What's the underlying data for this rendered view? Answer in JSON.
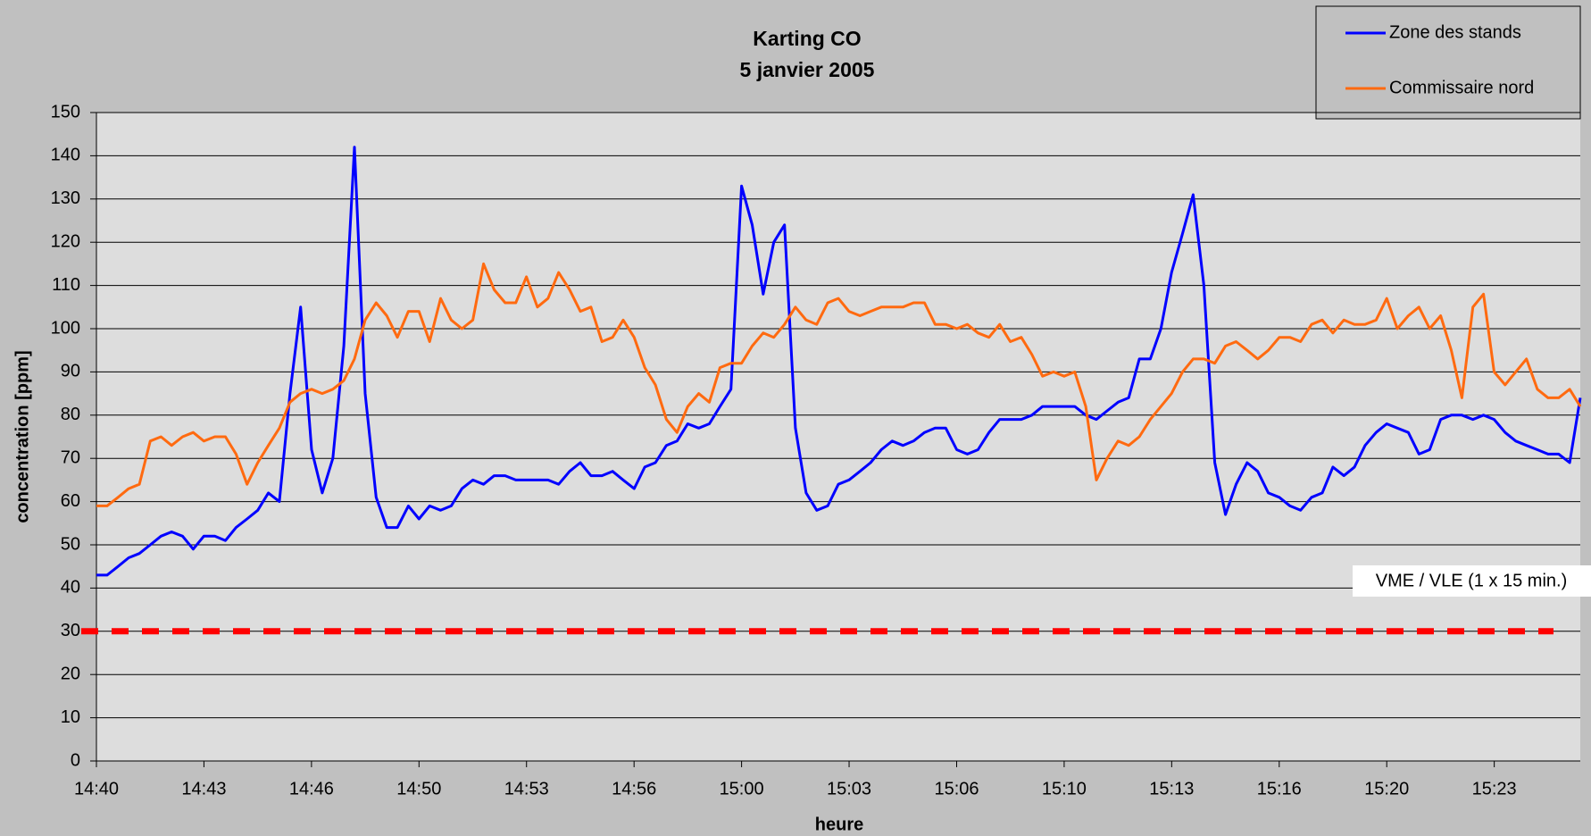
{
  "chart_data": {
    "type": "line",
    "title": "Karting  CO",
    "subtitle": "5 janvier 2005",
    "x_label": "heure",
    "y_label": "concentration [ppm]",
    "x": [
      0,
      0.33,
      0.67,
      1,
      1.33,
      1.67,
      2,
      2.33,
      2.67,
      3,
      3.33,
      3.67,
      4,
      4.33,
      4.67,
      5,
      5.33,
      5.67,
      6,
      6.33,
      6.67,
      7,
      7.33,
      7.67,
      8,
      8.33,
      8.67,
      9,
      9.33,
      9.67,
      10,
      10.33,
      10.67,
      11,
      11.33,
      11.67,
      12,
      12.33,
      12.67,
      13,
      13.33,
      13.67,
      14,
      14.33,
      14.67,
      15,
      15.33,
      15.67,
      16,
      16.33,
      16.67,
      17,
      17.33,
      17.67,
      18,
      18.33,
      18.67,
      19,
      19.33,
      19.67,
      20,
      20.33,
      20.67,
      21,
      21.33,
      21.67,
      22,
      22.33,
      22.67,
      23,
      23.33,
      23.67,
      24,
      24.33,
      24.67,
      25,
      25.33,
      25.67,
      26,
      26.33,
      26.67,
      27,
      27.33,
      27.67,
      28,
      28.33,
      28.67,
      29,
      29.33,
      29.67,
      30,
      30.33,
      30.67,
      31,
      31.33,
      31.67,
      32,
      32.33,
      32.67,
      33,
      33.33,
      33.67,
      34,
      34.33,
      34.67,
      35,
      35.33,
      35.67,
      36,
      36.33,
      36.67,
      37,
      37.33,
      37.67,
      38,
      38.33,
      38.67,
      39,
      39.33,
      39.67,
      40,
      40.33,
      40.67,
      41,
      41.33,
      41.67,
      42,
      42.33,
      42.67,
      43,
      43.33,
      43.67,
      44,
      44.33,
      44.67,
      45,
      45.33,
      45.67,
      46
    ],
    "series": [
      {
        "name": "Zone des stands",
        "color": "#0000ff",
        "values": [
          43,
          43,
          45,
          47,
          48,
          50,
          52,
          53,
          52,
          49,
          52,
          52,
          51,
          54,
          56,
          58,
          62,
          60,
          85,
          105,
          72,
          62,
          70,
          96,
          142,
          85,
          61,
          54,
          54,
          59,
          56,
          59,
          58,
          59,
          63,
          65,
          64,
          66,
          66,
          65,
          65,
          65,
          65,
          64,
          67,
          69,
          66,
          66,
          67,
          65,
          63,
          68,
          69,
          73,
          74,
          78,
          77,
          78,
          82,
          86,
          133,
          124,
          108,
          120,
          124,
          77,
          62,
          58,
          59,
          64,
          65,
          67,
          69,
          72,
          74,
          73,
          74,
          76,
          77,
          77,
          72,
          71,
          72,
          76,
          79,
          79,
          79,
          80,
          82,
          82,
          82,
          82,
          80,
          79,
          81,
          83,
          84,
          93,
          93,
          100,
          113,
          122,
          131,
          110,
          69,
          57,
          64,
          69,
          67,
          62,
          61,
          59,
          58,
          61,
          62,
          68,
          66,
          68,
          73,
          76,
          78,
          77,
          76,
          71,
          72,
          79,
          80,
          80,
          79,
          80,
          79,
          76,
          74,
          73,
          72,
          71,
          71,
          69,
          84
        ]
      },
      {
        "name": "Commissaire nord",
        "color": "#ff6a10",
        "values": [
          59,
          59,
          61,
          63,
          64,
          74,
          75,
          73,
          75,
          76,
          74,
          75,
          75,
          71,
          64,
          69,
          73,
          77,
          83,
          85,
          86,
          85,
          86,
          88,
          93,
          102,
          106,
          103,
          98,
          104,
          104,
          97,
          107,
          102,
          100,
          102,
          115,
          109,
          106,
          106,
          112,
          105,
          107,
          113,
          109,
          104,
          105,
          97,
          98,
          102,
          98,
          91,
          87,
          79,
          76,
          82,
          85,
          83,
          91,
          92,
          92,
          96,
          99,
          98,
          101,
          105,
          102,
          101,
          106,
          107,
          104,
          103,
          104,
          105,
          105,
          105,
          106,
          106,
          101,
          101,
          100,
          101,
          99,
          98,
          101,
          97,
          98,
          94,
          89,
          90,
          89,
          90,
          82,
          65,
          70,
          74,
          73,
          75,
          79,
          82,
          85,
          90,
          93,
          93,
          92,
          96,
          97,
          95,
          93,
          95,
          98,
          98,
          97,
          101,
          102,
          99,
          102,
          101,
          101,
          102,
          107,
          100,
          103,
          105,
          100,
          103,
          95,
          84,
          105,
          108,
          90,
          87,
          90,
          93,
          86,
          84,
          84,
          86,
          82
        ]
      }
    ],
    "xlim": [
      0,
      46
    ],
    "xticks": [
      {
        "value": 0,
        "label": "14:40"
      },
      {
        "value": 3.333,
        "label": "14:43"
      },
      {
        "value": 6.667,
        "label": "14:46"
      },
      {
        "value": 10,
        "label": "14:50"
      },
      {
        "value": 13.333,
        "label": "14:53"
      },
      {
        "value": 16.667,
        "label": "14:56"
      },
      {
        "value": 20,
        "label": "15:00"
      },
      {
        "value": 23.333,
        "label": "15:03"
      },
      {
        "value": 26.667,
        "label": "15:06"
      },
      {
        "value": 30,
        "label": "15:10"
      },
      {
        "value": 33.333,
        "label": "15:13"
      },
      {
        "value": 36.667,
        "label": "15:16"
      },
      {
        "value": 40,
        "label": "15:20"
      },
      {
        "value": 43.333,
        "label": "15:23"
      }
    ],
    "ylim": [
      0,
      150
    ],
    "yticks": [
      0,
      10,
      20,
      30,
      40,
      50,
      60,
      70,
      80,
      90,
      100,
      110,
      120,
      130,
      140,
      150
    ],
    "grid": true,
    "legend": "top-right",
    "threshold": {
      "value": 30,
      "label": "VME / VLE (1 x 15 min.)",
      "color": "#ff0000"
    }
  }
}
